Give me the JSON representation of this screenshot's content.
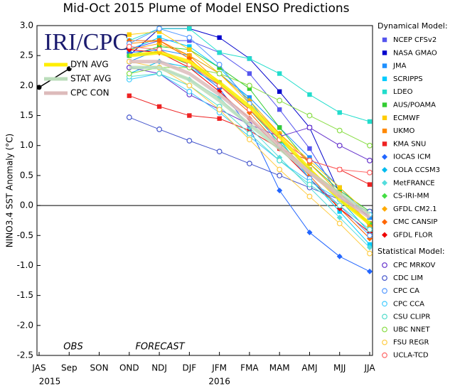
{
  "chart_data": {
    "type": "line",
    "title": "Mid-Oct 2015 Plume of Model ENSO Predictions",
    "y_label": "NINO3.4 SST Anomaly (°C)",
    "logo": "IRI/CPC",
    "annotations": [
      "OBS",
      "FORECAST"
    ],
    "categories": [
      "JAS",
      "Sep",
      "SON",
      "OND",
      "NDJ",
      "DJF",
      "JFM",
      "FMA",
      "MAM",
      "AMJ",
      "MJJ",
      "JJA"
    ],
    "year_labels": [
      "2015",
      null,
      null,
      null,
      null,
      null,
      "2016",
      null,
      null,
      null,
      null,
      null
    ],
    "ylim": [
      -2.5,
      3.0
    ],
    "yticks": [
      {
        "value": 3.0,
        "label": "3.0"
      },
      {
        "value": 2.5,
        "label": "2.5"
      },
      {
        "value": 2.0,
        "label": "2.0"
      },
      {
        "value": 1.5,
        "label": "1.5"
      },
      {
        "value": 1.0,
        "label": "1.0"
      },
      {
        "value": 0.5,
        "label": "0.5"
      },
      {
        "value": 0.0,
        "label": "0.0"
      },
      {
        "value": -0.5,
        "label": "-0.5"
      },
      {
        "value": -1.0,
        "label": "-1.0"
      },
      {
        "value": -1.5,
        "label": "-1.5"
      },
      {
        "value": -2.0,
        "label": "-2.0"
      },
      {
        "value": -2.5,
        "label": "-2.5"
      }
    ],
    "legend_titles": [
      "Dynamical Model:",
      "Statistical Model:"
    ],
    "observed": {
      "color": "#000000",
      "values": [
        1.97,
        2.28,
        null,
        null,
        null,
        null,
        null,
        null,
        null,
        null,
        null,
        null
      ]
    },
    "series": [
      {
        "name": "NCEP CFSv2",
        "color": "#5555ee",
        "marker": "square",
        "values": [
          null,
          null,
          null,
          2.6,
          2.75,
          2.75,
          2.55,
          2.2,
          1.6,
          0.95,
          0.15,
          -0.3
        ]
      },
      {
        "name": "NASA GMAO",
        "color": "#0000cc",
        "marker": "square",
        "values": [
          null,
          null,
          null,
          2.5,
          2.95,
          2.95,
          2.8,
          2.45,
          1.9,
          1.3,
          0.2,
          -0.2
        ]
      },
      {
        "name": "JMA",
        "color": "#1e90ff",
        "marker": "square",
        "values": [
          null,
          null,
          null,
          2.4,
          2.6,
          2.5,
          2.2,
          1.8,
          1.3,
          0.8,
          0.3,
          -0.2
        ]
      },
      {
        "name": "SCRIPPS",
        "color": "#00ccff",
        "marker": "square",
        "values": [
          null,
          null,
          null,
          2.6,
          2.8,
          2.65,
          2.3,
          1.75,
          1.1,
          0.45,
          -0.1,
          -0.65
        ]
      },
      {
        "name": "LDEO",
        "color": "#22ddcc",
        "marker": "square",
        "values": [
          null,
          null,
          null,
          2.75,
          2.95,
          2.95,
          2.55,
          2.45,
          2.2,
          1.85,
          1.55,
          1.4
        ]
      },
      {
        "name": "AUS/POAMA",
        "color": "#33cc33",
        "marker": "square",
        "values": [
          null,
          null,
          null,
          2.5,
          2.65,
          2.6,
          2.3,
          1.95,
          1.3,
          0.7,
          0.25,
          -0.1
        ]
      },
      {
        "name": "ECMWF",
        "color": "#ffcc00",
        "marker": "square",
        "values": [
          null,
          null,
          null,
          2.85,
          2.9,
          2.6,
          2.2,
          1.7,
          1.2,
          0.75,
          0.3,
          -0.15
        ]
      },
      {
        "name": "UKMO",
        "color": "#ff8800",
        "marker": "square",
        "values": [
          null,
          null,
          null,
          2.7,
          2.75,
          2.5,
          2.05,
          1.6,
          1.1,
          0.6,
          0.2,
          -0.3
        ]
      },
      {
        "name": "KMA SNU",
        "color": "#ee2222",
        "marker": "square",
        "values": [
          null,
          null,
          null,
          1.83,
          1.65,
          1.5,
          1.45,
          1.25,
          0.95,
          0.75,
          0.6,
          0.35
        ]
      },
      {
        "name": "IOCAS ICM",
        "color": "#2266ff",
        "marker": "diamond",
        "values": [
          null,
          null,
          null,
          2.55,
          2.6,
          2.35,
          1.95,
          1.3,
          0.25,
          -0.45,
          -0.85,
          -1.1
        ]
      },
      {
        "name": "COLA CCSM3",
        "color": "#00bbee",
        "marker": "diamond",
        "values": [
          null,
          null,
          null,
          2.2,
          2.4,
          2.3,
          2.0,
          1.6,
          1.1,
          0.6,
          0.1,
          -0.45
        ]
      },
      {
        "name": "MetFRANCE",
        "color": "#55dddd",
        "marker": "diamond",
        "values": [
          null,
          null,
          null,
          2.3,
          2.3,
          2.1,
          1.8,
          1.3,
          0.8,
          0.3,
          -0.2,
          -0.7
        ]
      },
      {
        "name": "CS-IRI-MM",
        "color": "#44dd44",
        "marker": "diamond",
        "values": [
          null,
          null,
          null,
          2.5,
          2.55,
          2.35,
          2.05,
          1.6,
          1.05,
          0.55,
          0.1,
          -0.3
        ]
      },
      {
        "name": "GFDL CM2.1",
        "color": "#ffaa00",
        "marker": "diamond",
        "values": [
          null,
          null,
          null,
          2.6,
          2.7,
          2.5,
          2.2,
          1.75,
          1.2,
          0.7,
          0.2,
          -0.35
        ]
      },
      {
        "name": "CMC CANSIP",
        "color": "#ff6600",
        "marker": "diamond",
        "values": [
          null,
          null,
          null,
          2.75,
          2.75,
          2.45,
          2.0,
          1.55,
          1.0,
          0.5,
          -0.05,
          -0.55
        ]
      },
      {
        "name": "GFDL FLOR",
        "color": "#ee0000",
        "marker": "diamond",
        "values": [
          null,
          null,
          null,
          2.6,
          2.55,
          2.3,
          1.9,
          1.45,
          0.95,
          0.45,
          -0.05,
          -0.45
        ]
      },
      {
        "name": "CPC MRKOV",
        "color": "#6633cc",
        "marker": "circle",
        "values": [
          null,
          null,
          null,
          2.3,
          2.2,
          1.85,
          1.6,
          1.35,
          1.15,
          1.3,
          1.0,
          0.75
        ]
      },
      {
        "name": "CDC LIM",
        "color": "#4455cc",
        "marker": "circle",
        "values": [
          null,
          null,
          null,
          1.47,
          1.27,
          1.08,
          0.9,
          0.7,
          0.5,
          0.3,
          0.1,
          -0.1
        ]
      },
      {
        "name": "CPC CA",
        "color": "#5599ff",
        "marker": "circle",
        "values": [
          null,
          null,
          null,
          2.7,
          2.95,
          2.8,
          2.35,
          1.7,
          1.0,
          0.45,
          0.0,
          -0.5
        ]
      },
      {
        "name": "CPC CCA",
        "color": "#44ccff",
        "marker": "circle",
        "values": [
          null,
          null,
          null,
          2.1,
          2.2,
          1.9,
          1.55,
          1.15,
          0.75,
          0.4,
          0.1,
          -0.15
        ]
      },
      {
        "name": "CSU CLIPR",
        "color": "#55ddcc",
        "marker": "circle",
        "values": [
          null,
          null,
          null,
          2.15,
          2.2,
          2.0,
          1.65,
          1.2,
          0.75,
          0.35,
          0.0,
          -0.4
        ]
      },
      {
        "name": "UBC NNET",
        "color": "#88dd44",
        "marker": "circle",
        "values": [
          null,
          null,
          null,
          2.2,
          2.3,
          2.3,
          2.2,
          2.0,
          1.75,
          1.5,
          1.25,
          1.0
        ]
      },
      {
        "name": "FSU REGR",
        "color": "#ffcc44",
        "marker": "circle",
        "values": [
          null,
          null,
          null,
          2.4,
          2.3,
          2.0,
          1.6,
          1.1,
          0.6,
          0.15,
          -0.3,
          -0.8
        ]
      },
      {
        "name": "UCLA-TCD",
        "color": "#ff6666",
        "marker": "circle",
        "values": [
          null,
          null,
          null,
          2.65,
          2.6,
          2.35,
          2.0,
          1.6,
          1.1,
          0.75,
          0.6,
          0.55
        ]
      },
      {
        "name": "DYN AVG",
        "color": "#ffee00",
        "marker": "none",
        "values": [
          null,
          null,
          null,
          2.5,
          2.55,
          2.4,
          2.05,
          1.65,
          1.15,
          0.6,
          0.1,
          -0.3
        ]
      },
      {
        "name": "STAT AVG",
        "color": "#bbddbb",
        "marker": "none",
        "values": [
          null,
          null,
          null,
          2.3,
          2.3,
          2.1,
          1.75,
          1.35,
          0.95,
          0.55,
          0.2,
          -0.15
        ]
      },
      {
        "name": "CPC CON",
        "color": "#ddbbbb",
        "marker": "none",
        "values": [
          null,
          null,
          null,
          2.4,
          2.4,
          2.2,
          1.85,
          1.45,
          1.0,
          0.55,
          0.15,
          -0.2
        ]
      }
    ]
  }
}
